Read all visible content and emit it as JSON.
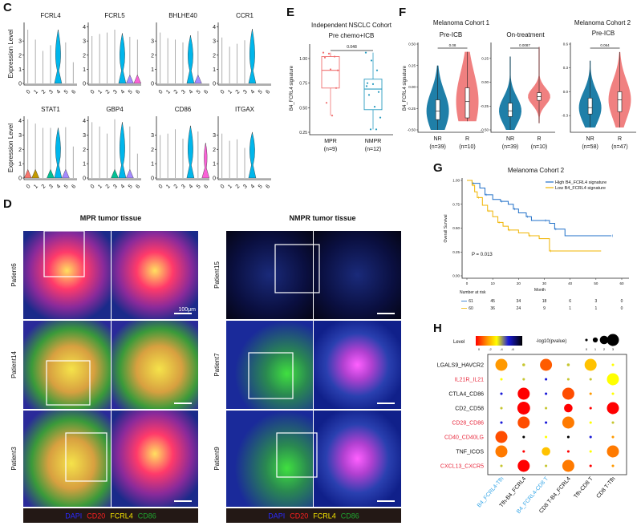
{
  "panel_labels": {
    "C": "C",
    "D": "D",
    "E": "E",
    "F": "F",
    "G": "G",
    "H": "H"
  },
  "panel_c": {
    "ylabel": "Expression Level",
    "clusters": [
      "0",
      "1",
      "2",
      "3",
      "4",
      "5",
      "6"
    ],
    "cluster_colors": [
      "#f8766d",
      "#c49a00",
      "#53b400",
      "#00c094",
      "#00b6eb",
      "#a58aff",
      "#fb61d7"
    ],
    "genes": [
      {
        "name": "FCRL4",
        "ticks": [
          0,
          1,
          2,
          3
        ],
        "max": [
          3.8,
          3.1,
          2.3,
          2.7,
          3.8,
          2.9,
          1.5
        ],
        "violins": {
          "4": "large"
        }
      },
      {
        "name": "FCRL5",
        "ticks": [
          0,
          1,
          2,
          3,
          4
        ],
        "max": [
          3.35,
          3.5,
          3.6,
          3.8,
          3.55,
          3.3,
          3.1
        ],
        "violins": {
          "4": "large",
          "5": "small",
          "6": "small"
        }
      },
      {
        "name": "BHLHE40",
        "ticks": [
          0,
          1,
          2,
          3
        ],
        "max": [
          3.6,
          3.2,
          3.1,
          2.9,
          3.4,
          3.7,
          0
        ],
        "violins": {
          "4": "large",
          "5": "small"
        }
      },
      {
        "name": "CCR1",
        "ticks": [
          0,
          1,
          2,
          3,
          4
        ],
        "max": [
          3.25,
          2.6,
          2.8,
          3.05,
          3.85,
          0,
          0
        ],
        "violins": {
          "4": "large"
        }
      },
      {
        "name": "STAT1",
        "ticks": [
          0,
          1,
          2,
          3,
          4
        ],
        "max": [
          4.1,
          3.8,
          3.5,
          3.5,
          3.5,
          3.55,
          2.2
        ],
        "violins": {
          "0": "small",
          "1": "small",
          "3": "small",
          "4": "large",
          "5": "small"
        }
      },
      {
        "name": "GBP4",
        "ticks": [
          0,
          1,
          2,
          3,
          4
        ],
        "max": [
          3.9,
          3.6,
          3.1,
          4.1,
          3.9,
          3.6,
          1.7
        ],
        "violins": {
          "3": "small",
          "4": "large",
          "5": "small"
        }
      },
      {
        "name": "CD86",
        "ticks": [
          0,
          1,
          2,
          3
        ],
        "max": [
          3.0,
          3.1,
          3.4,
          2.75,
          3.65,
          3.25,
          2.45
        ],
        "violins": {
          "4": "large",
          "6": "medium"
        }
      },
      {
        "name": "ITGAX",
        "ticks": [
          0,
          1,
          2,
          3
        ],
        "max": [
          3.1,
          2.6,
          2.7,
          2.1,
          3.2,
          0,
          0
        ],
        "violins": {
          "4": "large"
        }
      }
    ]
  },
  "panel_d": {
    "mpr_title": "MPR tumor tissue",
    "nmpr_title": "NMPR tumor tissue",
    "mpr_patients": [
      "Patient6",
      "Patient14",
      "Patient3"
    ],
    "nmpr_patients": [
      "Patient15",
      "Patient7",
      "Patient9"
    ],
    "scale_bar": "100μm",
    "stains": [
      {
        "name": "DAPI",
        "color": "#2a2aff"
      },
      {
        "name": "CD20",
        "color": "#ff2020"
      },
      {
        "name": "FCRL4",
        "color": "#f5e400"
      },
      {
        "name": "CD86",
        "color": "#1fa52f"
      }
    ]
  },
  "panel_e": {
    "title": "Independent NSCLC Cohort",
    "subtitle": "Pre chemo+ICB",
    "ylabel": "B4_FCRL4 signature",
    "yticks": [
      "0.25",
      "0.50",
      "0.75",
      "1.00"
    ],
    "pvalue": "0.048",
    "groups": [
      {
        "label": "MPR",
        "n": "(n=9)",
        "color": "#f07070",
        "q1": 0.7,
        "median": 0.88,
        "q3": 1.02,
        "min": 0.42,
        "max": 1.06,
        "points": [
          1.06,
          1.05,
          1.02,
          1.01,
          0.89,
          0.7,
          0.55,
          0.42,
          0.88
        ]
      },
      {
        "label": "NMPR",
        "n": "(n=12)",
        "color": "#2a9cc0",
        "q1": 0.48,
        "median": 0.69,
        "q3": 0.79,
        "min": 0.28,
        "max": 1.06,
        "points": [
          1.06,
          0.98,
          0.88,
          0.75,
          0.74,
          0.66,
          0.63,
          0.51,
          0.4,
          0.28,
          0.28,
          0.72
        ]
      }
    ]
  },
  "panel_f": {
    "cohort1_title": "Melanoma Cohort 1",
    "cohort2_title": "Melanoma Cohort 2",
    "ylabel": "B4_FCRL4 signature",
    "colors": {
      "NR": "#1f7fa8",
      "R": "#f08080"
    },
    "plots": [
      {
        "title": "Pre-ICB",
        "pvalue": "0.08",
        "yticks": [
          -0.5,
          -0.25,
          0,
          0.25,
          0.5
        ],
        "ytick_labels": [
          "-0.50",
          "-0.25",
          "0.00",
          "0.25",
          "0.50"
        ],
        "ylim": [
          -0.5,
          0.5
        ],
        "groups": [
          {
            "label": "NR",
            "n": "(n=39)",
            "min": -0.5,
            "q1": -0.38,
            "median": -0.28,
            "q3": -0.15,
            "max": 0.25
          },
          {
            "label": "R",
            "n": "(n=10)",
            "min": -0.4,
            "q1": -0.36,
            "median": -0.17,
            "q3": -0.01,
            "max": 0.41
          }
        ]
      },
      {
        "title": "On-treatment",
        "pvalue": "0.0087",
        "yticks": [
          -0.5,
          -0.25,
          0,
          0.25
        ],
        "ytick_labels": [
          "-0.50",
          "-0.25",
          "0.00",
          "0.25"
        ],
        "ylim": [
          -0.5,
          0.4
        ],
        "groups": [
          {
            "label": "NR",
            "n": "(n=39)",
            "min": -0.5,
            "q1": -0.36,
            "median": -0.3,
            "q3": -0.22,
            "max": 0.27
          },
          {
            "label": "R",
            "n": "(n=10)",
            "min": -0.43,
            "q1": -0.19,
            "median": -0.15,
            "q3": -0.11,
            "max": 0.37
          }
        ]
      },
      {
        "title": "Pre-ICB",
        "pvalue": "0.064",
        "yticks": [
          -0.3,
          0,
          0.3,
          0.6
        ],
        "ytick_labels": [
          "-0.3",
          "0.0",
          "0.3",
          "0.6"
        ],
        "ylim": [
          -0.48,
          0.6
        ],
        "groups": [
          {
            "label": "NR",
            "n": "(n=58)",
            "min": -0.45,
            "q1": -0.28,
            "median": -0.2,
            "q3": -0.08,
            "max": 0.39
          },
          {
            "label": "R",
            "n": "(n=47)",
            "min": -0.45,
            "q1": -0.25,
            "median": -0.1,
            "q3": 0.0,
            "max": 0.5
          }
        ]
      }
    ]
  },
  "chart_data": {
    "type": "line",
    "title": "Melanoma Cohort 2",
    "xlabel": "Month",
    "ylabel": "Overall Survival",
    "xlim": [
      0,
      60
    ],
    "ylim": [
      0,
      1
    ],
    "xticks": [
      0,
      10,
      20,
      30,
      40,
      50,
      60
    ],
    "yticks": [
      "0.00",
      "0.25",
      "0.50",
      "0.75",
      "1.00"
    ],
    "legend_position": "top-right",
    "annotation": "P = 0.013",
    "risk_table_label": "Number at risk",
    "series": [
      {
        "name": "High B4_FCRL4 signature",
        "color": "#1f6fc8",
        "risk": [
          61,
          45,
          34,
          18,
          6,
          3,
          0
        ],
        "steps": [
          [
            0,
            1
          ],
          [
            2,
            0.97
          ],
          [
            5,
            0.92
          ],
          [
            7,
            0.85
          ],
          [
            10,
            0.8
          ],
          [
            13,
            0.78
          ],
          [
            16,
            0.75
          ],
          [
            18,
            0.7
          ],
          [
            20,
            0.66
          ],
          [
            23,
            0.62
          ],
          [
            25,
            0.58
          ],
          [
            30,
            0.58
          ],
          [
            32,
            0.55
          ],
          [
            34,
            0.49
          ],
          [
            38,
            0.42
          ],
          [
            56,
            0.42
          ]
        ]
      },
      {
        "name": "Low B4_FCRL4 signature",
        "color": "#f0b400",
        "risk": [
          60,
          36,
          24,
          9,
          1,
          1,
          0
        ],
        "steps": [
          [
            0,
            1
          ],
          [
            2,
            0.95
          ],
          [
            3,
            0.88
          ],
          [
            4,
            0.82
          ],
          [
            6,
            0.74
          ],
          [
            8,
            0.68
          ],
          [
            10,
            0.62
          ],
          [
            12,
            0.56
          ],
          [
            14,
            0.52
          ],
          [
            16,
            0.48
          ],
          [
            20,
            0.45
          ],
          [
            24,
            0.42
          ],
          [
            28,
            0.39
          ],
          [
            32,
            0.26
          ],
          [
            52,
            0.26
          ]
        ]
      }
    ]
  },
  "panel_h": {
    "level_label": "Level",
    "level_ticks": [
      "0",
      "-2",
      "-4",
      "-6"
    ],
    "pvalue_label": "-log10(pvalue)",
    "size_ticks": [
      "0",
      "1",
      "2",
      "3"
    ],
    "rows": [
      {
        "label": "LGALS9_HAVCR2",
        "color": "#111111",
        "level": [
          -1,
          -2.6,
          -0.6,
          -2.6,
          -1.4,
          -2
        ],
        "size": [
          3,
          0.4,
          3,
          0.4,
          3,
          0.3
        ]
      },
      {
        "label": "IL21R_IL21",
        "color": "#e8283c",
        "level": [
          -2,
          -2.6,
          -4.5,
          -2.6,
          -2.6,
          -2
        ],
        "size": [
          0.3,
          0.3,
          0.3,
          0.3,
          0.3,
          3
        ]
      },
      {
        "label": "CTLA4_CD86",
        "color": "#111111",
        "level": [
          -4.5,
          0,
          -4.5,
          -0.5,
          -1,
          -2
        ],
        "size": [
          0.3,
          3,
          0.3,
          3,
          0.3,
          0.3
        ]
      },
      {
        "label": "CD2_CD58",
        "color": "#111111",
        "level": [
          -2.6,
          0,
          -2.6,
          0,
          0,
          0
        ],
        "size": [
          0.3,
          3.2,
          0.3,
          2,
          0.3,
          3
        ]
      },
      {
        "label": "CD28_CD86",
        "color": "#e8283c",
        "level": [
          -4.5,
          -0.5,
          -4.5,
          -0.8,
          -2,
          -2.6
        ],
        "size": [
          0.3,
          3,
          0.3,
          3,
          0.3,
          0.3
        ]
      },
      {
        "label": "CD40_CD40LG",
        "color": "#e8283c",
        "level": [
          -0.5,
          -6,
          -2,
          -6,
          -4.5,
          -1
        ],
        "size": [
          3,
          0.3,
          0.3,
          0.3,
          0.3,
          0.3
        ]
      },
      {
        "label": "TNF_ICOS",
        "color": "#111111",
        "level": [
          -0.8,
          0,
          -1.4,
          0,
          -2,
          -0.8
        ],
        "size": [
          3,
          0.3,
          2,
          0.3,
          0.3,
          3
        ]
      },
      {
        "label": "CXCL13_CXCR5",
        "color": "#e8283c",
        "level": [
          -2.6,
          0,
          -2.6,
          -0.8,
          0,
          -1
        ],
        "size": [
          0.3,
          3,
          0.3,
          3,
          0.3,
          0.3
        ]
      }
    ],
    "columns": [
      {
        "label": "B4_FCRL4-Tfh",
        "color": "#3aa8e8"
      },
      {
        "label": "Tfh-B4_FCRL4",
        "color": "#111111"
      },
      {
        "label": "B4_FCRL4-CD8 T",
        "color": "#3aa8e8"
      },
      {
        "label": "CD8 T-B4_FCRL4",
        "color": "#111111"
      },
      {
        "label": "Tfh-CD8 T",
        "color": "#111111"
      },
      {
        "label": "CD8 T-Tfh",
        "color": "#111111"
      }
    ]
  }
}
